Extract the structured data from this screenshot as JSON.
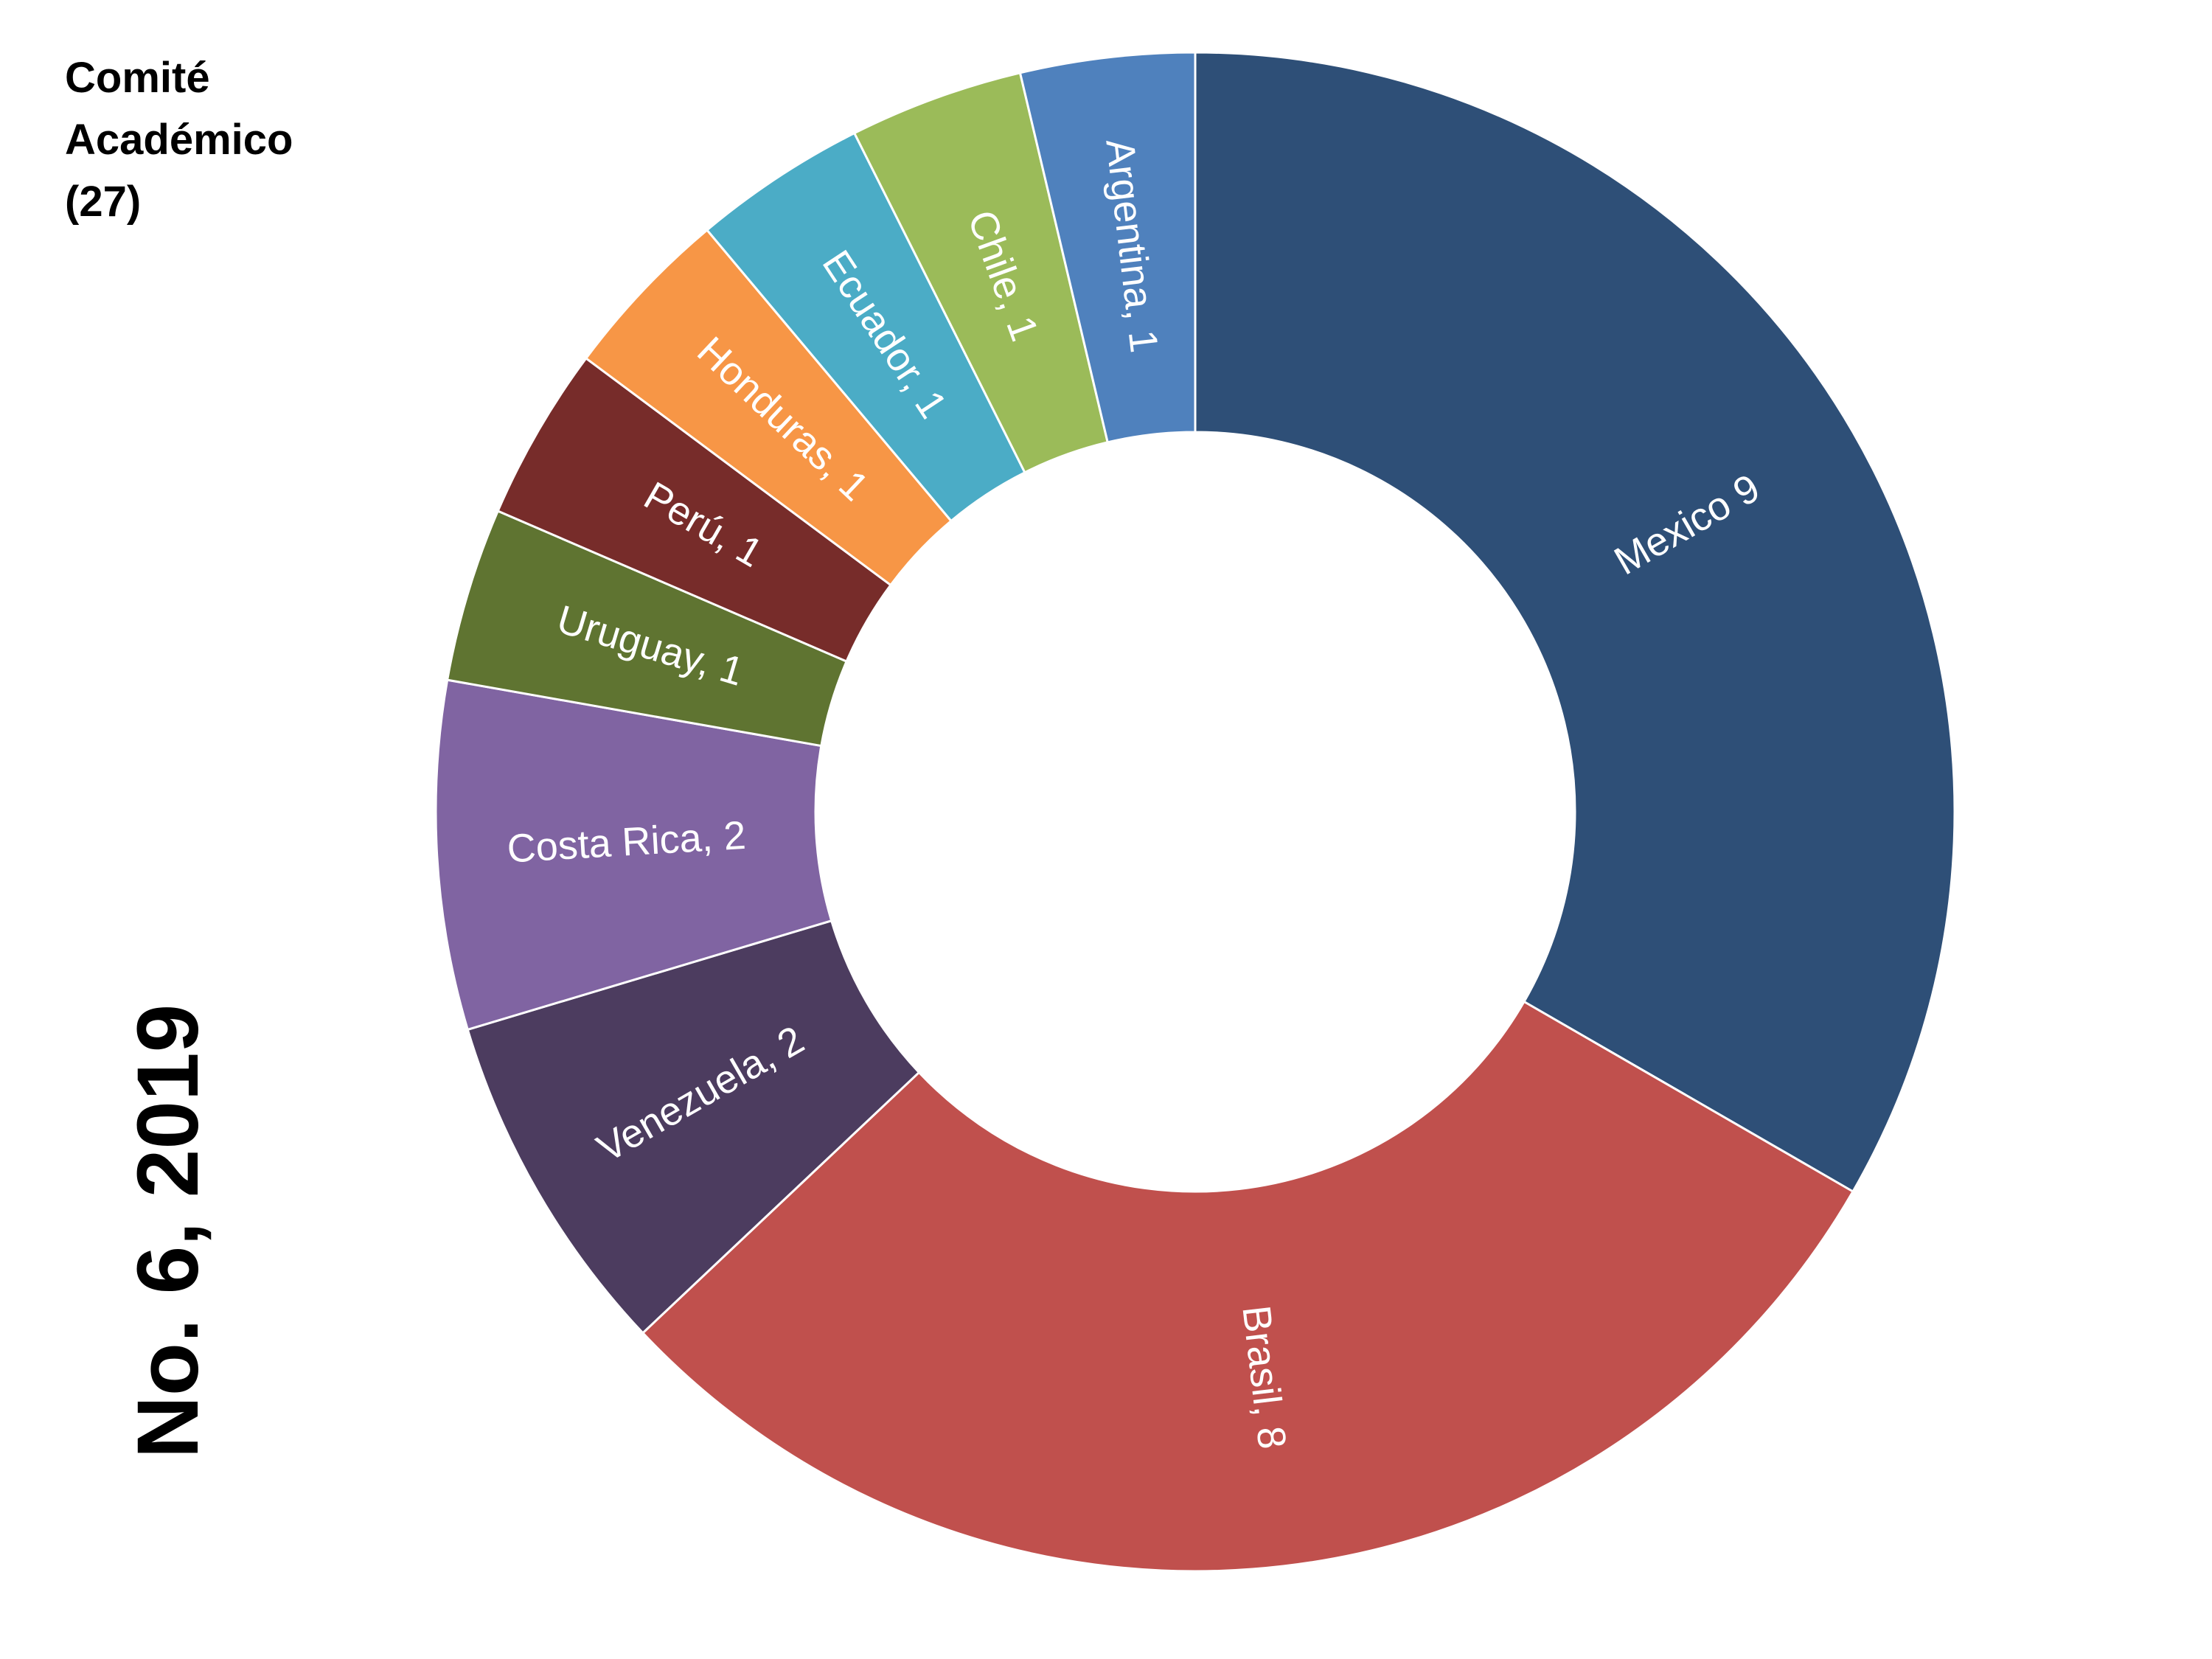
{
  "title": {
    "line1": "Comité",
    "line2": "Académico",
    "line3": "(27)"
  },
  "issue": "No. 6, 2019",
  "chart_data": {
    "type": "pie",
    "variant": "donut",
    "title": "Comité Académico (27)",
    "total": 27,
    "slices": [
      {
        "name": "Mexico",
        "value": 9,
        "label": "Mexico 9",
        "color": "#2e4f77"
      },
      {
        "name": "Brasil",
        "value": 8,
        "label": "Brasil, 8",
        "color": "#c0504d"
      },
      {
        "name": "Venezuela",
        "value": 2,
        "label": "Venezuela, 2",
        "color": "#4c3c5f"
      },
      {
        "name": "Costa Rica",
        "value": 2,
        "label": "Costa Rica, 2",
        "color": "#8064a2"
      },
      {
        "name": "Uruguay",
        "value": 1,
        "label": "Uruguay, 1",
        "color": "#5f7431"
      },
      {
        "name": "Perú",
        "value": 1,
        "label": "Perú, 1",
        "color": "#772c2a"
      },
      {
        "name": "Honduras",
        "value": 1,
        "label": "Honduras, 1",
        "color": "#f79646"
      },
      {
        "name": "Ecuador",
        "value": 1,
        "label": "Ecuador, 1",
        "color": "#4bacc6"
      },
      {
        "name": "Chile",
        "value": 1,
        "label": "Chile, 1",
        "color": "#9bbb59"
      },
      {
        "name": "Argentina",
        "value": 1,
        "label": "Argentina, 1",
        "color": "#4f81bd"
      }
    ]
  }
}
